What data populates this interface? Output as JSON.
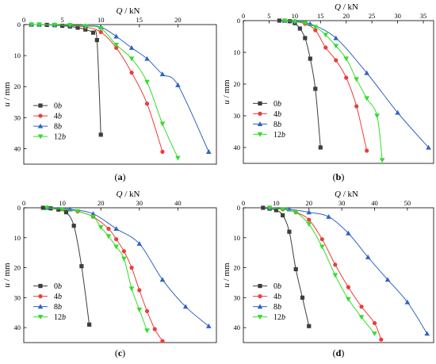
{
  "chart_data": [
    {
      "type": "line",
      "panel_label": "(a)",
      "xlabel": "Q / kN",
      "ylabel": "u / mm",
      "xlim": [
        0,
        25
      ],
      "ylim": [
        0,
        45
      ],
      "xticks": [
        0,
        5,
        10,
        15,
        20
      ],
      "yticks": [
        0,
        10,
        20,
        30,
        40
      ],
      "legend": "lower-left",
      "series": [
        {
          "name": "0b",
          "marker": "square",
          "color": "#3d3d3d",
          "x": [
            1,
            2,
            3,
            4,
            5,
            6,
            7,
            8,
            9,
            9.5,
            10
          ],
          "y": [
            0,
            0,
            0.1,
            0.2,
            0.4,
            0.6,
            1.0,
            1.6,
            2.6,
            5.0,
            35.5
          ]
        },
        {
          "name": "4b",
          "marker": "circle",
          "color": "#ef3b3b",
          "x": [
            1,
            2,
            4,
            6,
            8,
            10,
            12,
            14,
            16,
            18
          ],
          "y": [
            0,
            0,
            0.1,
            0.3,
            0.8,
            2.4,
            7.5,
            15.5,
            25.5,
            41.0
          ]
        },
        {
          "name": "8b",
          "marker": "triangle-up",
          "color": "#2f63c4",
          "x": [
            1,
            2,
            4,
            6,
            8,
            10,
            12,
            14,
            16,
            18,
            20,
            24
          ],
          "y": [
            0,
            0,
            0.1,
            0.2,
            0.4,
            0.8,
            3.8,
            7.5,
            11.0,
            16.0,
            19.5,
            41.0
          ]
        },
        {
          "name": "12b",
          "marker": "triangle-down",
          "color": "#33dd2a",
          "x": [
            1,
            2,
            4,
            6,
            8,
            10,
            12,
            14,
            16,
            18,
            20
          ],
          "y": [
            0,
            0,
            0.1,
            0.2,
            0.5,
            1.2,
            6.5,
            11.0,
            18.5,
            32.0,
            43.0
          ]
        }
      ]
    },
    {
      "type": "line",
      "panel_label": "(b)",
      "xlabel": "Q / kN",
      "ylabel": "u / mm",
      "xlim": [
        0,
        37
      ],
      "ylim": [
        0,
        45
      ],
      "xticks": [
        0,
        5,
        10,
        15,
        20,
        25,
        30,
        35
      ],
      "yticks": [
        0,
        10,
        20,
        30,
        40
      ],
      "legend": "lower-left",
      "series": [
        {
          "name": "0b",
          "marker": "square",
          "color": "#3d3d3d",
          "x": [
            7,
            9,
            10,
            11,
            12,
            13,
            14,
            15
          ],
          "y": [
            0,
            0.2,
            0.8,
            2.5,
            5.5,
            12.0,
            21.5,
            40.0
          ]
        },
        {
          "name": "4b",
          "marker": "circle",
          "color": "#ef3b3b",
          "x": [
            8,
            10,
            12,
            14,
            16,
            18,
            20,
            22,
            24
          ],
          "y": [
            0,
            0.3,
            1.0,
            3.0,
            8.5,
            12.5,
            18.0,
            27.0,
            41.0
          ]
        },
        {
          "name": "8b",
          "marker": "triangle-up",
          "color": "#2f63c4",
          "x": [
            8,
            10,
            13,
            18,
            24,
            30,
            36
          ],
          "y": [
            0,
            0.2,
            1.0,
            5.5,
            16.5,
            29.0,
            40.0
          ]
        },
        {
          "name": "12b",
          "marker": "triangle-down",
          "color": "#33dd2a",
          "x": [
            8,
            10,
            12,
            14,
            16,
            18,
            20,
            22,
            24,
            26,
            27
          ],
          "y": [
            0,
            0.3,
            0.8,
            2.0,
            4.5,
            8.0,
            12.0,
            18.5,
            24.5,
            30.0,
            44.0
          ]
        }
      ]
    },
    {
      "type": "line",
      "panel_label": "(c)",
      "xlabel": "Q / kN",
      "ylabel": "u / mm",
      "xlim": [
        0,
        50
      ],
      "ylim": [
        0,
        45
      ],
      "xticks": [
        0,
        10,
        20,
        30,
        40
      ],
      "yticks": [
        0,
        10,
        20,
        30,
        40
      ],
      "legend": "lower-left",
      "series": [
        {
          "name": "0b",
          "marker": "square",
          "color": "#3d3d3d",
          "x": [
            5,
            7,
            9,
            11,
            13,
            15,
            17
          ],
          "y": [
            0,
            0.2,
            0.6,
            1.5,
            6.0,
            19.5,
            39.0
          ]
        },
        {
          "name": "4b",
          "marker": "circle",
          "color": "#ef3b3b",
          "x": [
            6,
            10,
            14,
            18,
            22,
            24,
            26,
            28,
            30,
            32,
            34,
            36
          ],
          "y": [
            0,
            0.5,
            1.2,
            3.0,
            7.0,
            10.5,
            14.5,
            20.0,
            27.5,
            34.5,
            40.5,
            44.5
          ]
        },
        {
          "name": "8b",
          "marker": "triangle-up",
          "color": "#2f63c4",
          "x": [
            6,
            12,
            18,
            24,
            30,
            36,
            42,
            48
          ],
          "y": [
            0,
            0.5,
            2.0,
            7.0,
            12.0,
            24.0,
            33.0,
            39.5
          ]
        },
        {
          "name": "12b",
          "marker": "triangle-down",
          "color": "#33dd2a",
          "x": [
            6,
            10,
            14,
            18,
            20,
            22,
            24,
            26,
            28,
            30,
            32
          ],
          "y": [
            0,
            0.5,
            1.2,
            3.0,
            6.5,
            9.5,
            13.0,
            17.0,
            27.0,
            34.0,
            41.0
          ]
        }
      ]
    },
    {
      "type": "line",
      "panel_label": "(d)",
      "xlabel": "Q / kN",
      "ylabel": "u / mm",
      "xlim": [
        0,
        58
      ],
      "ylim": [
        0,
        45
      ],
      "xticks": [
        0,
        10,
        20,
        30,
        40,
        50
      ],
      "yticks": [
        0,
        10,
        20,
        30,
        40
      ],
      "legend": "lower-left",
      "series": [
        {
          "name": "0b",
          "marker": "square",
          "color": "#3d3d3d",
          "x": [
            6,
            8,
            10,
            12,
            14,
            16,
            18,
            20
          ],
          "y": [
            0,
            0.3,
            0.8,
            2.5,
            8.0,
            20.5,
            30.0,
            39.5
          ]
        },
        {
          "name": "4b",
          "marker": "circle",
          "color": "#ef3b3b",
          "x": [
            8,
            12,
            16,
            20,
            24,
            28,
            32,
            36,
            40,
            42
          ],
          "y": [
            0,
            0.5,
            1.5,
            4.0,
            10.5,
            19.0,
            26.5,
            33.0,
            38.5,
            44.0
          ]
        },
        {
          "name": "8b",
          "marker": "triangle-up",
          "color": "#2f63c4",
          "x": [
            8,
            14,
            20,
            26,
            32,
            38,
            44,
            50,
            56
          ],
          "y": [
            0,
            0.5,
            1.5,
            3.0,
            8.5,
            16.5,
            24.0,
            31.5,
            42.0
          ]
        },
        {
          "name": "12b",
          "marker": "triangle-down",
          "color": "#33dd2a",
          "x": [
            8,
            12,
            16,
            20,
            24,
            28,
            32,
            36,
            40
          ],
          "y": [
            0,
            0.5,
            1.5,
            5.5,
            13.0,
            22.5,
            30.5,
            36.5,
            42.0
          ]
        }
      ]
    }
  ]
}
